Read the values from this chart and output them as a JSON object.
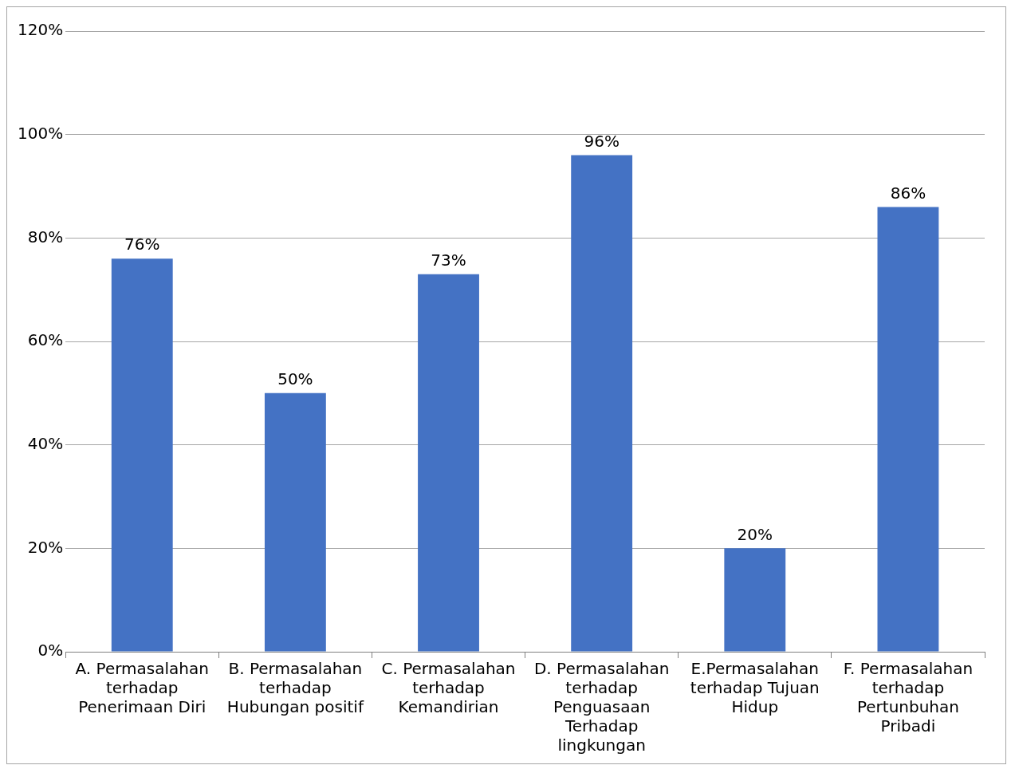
{
  "chart_data": {
    "type": "bar",
    "categories": [
      "A. Permasalahan terhadap Penerimaan Diri",
      "B. Permasalahan terhadap Hubungan positif",
      "C. Permasalahan terhadap Kemandirian",
      "D. Permasalahan terhadap Penguasaan Terhadap lingkungan",
      "E.Permasalahan terhadap Tujuan Hidup",
      "F. Permasalahan terhadap Pertunbuhan Pribadi"
    ],
    "values": [
      76,
      50,
      73,
      96,
      20,
      86
    ],
    "value_labels": [
      "76%",
      "50%",
      "73%",
      "96%",
      "20%",
      "86%"
    ],
    "color": "#4472c4",
    "ylim": [
      0,
      120
    ],
    "yticks": [
      {
        "value": 0,
        "label": "0%"
      },
      {
        "value": 20,
        "label": "20%"
      },
      {
        "value": 40,
        "label": "40%"
      },
      {
        "value": 60,
        "label": "60%"
      },
      {
        "value": 80,
        "label": "80%"
      },
      {
        "value": 100,
        "label": "100%"
      },
      {
        "value": 120,
        "label": "120%"
      }
    ],
    "grid": "y"
  }
}
